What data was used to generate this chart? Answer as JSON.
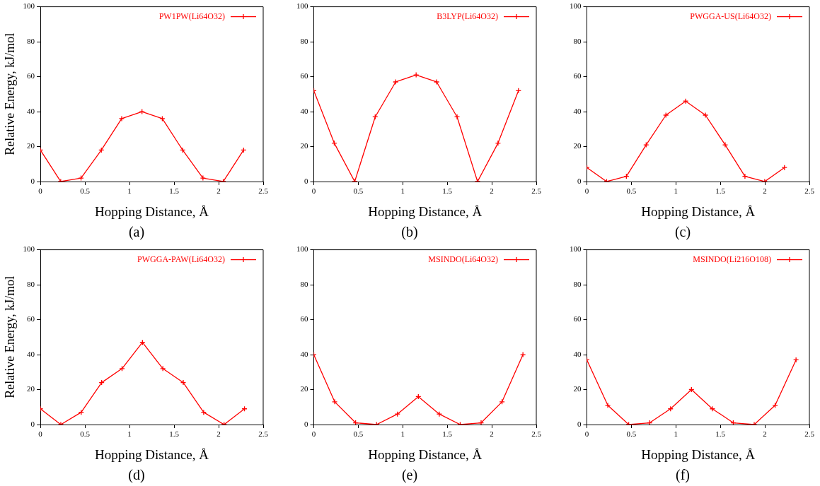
{
  "chart_data": [
    {
      "type": "line",
      "xlabel": "Hopping Distance, Å",
      "ylabel": "Relative Energy, kJ/mol",
      "annotations": [
        "(a)"
      ],
      "xlim": [
        0,
        2.5
      ],
      "xticks": [
        0,
        0.5,
        1,
        1.5,
        2,
        2.5
      ],
      "ylim": [
        0,
        100
      ],
      "yticks": [
        0,
        20,
        40,
        60,
        80,
        100
      ],
      "grid": false,
      "legend": "top right",
      "marker": "cross",
      "line_style": "solid",
      "series": [
        {
          "name": "PW1PW(Li64O32)",
          "color": "#ff0000",
          "x": [
            0,
            0.228,
            0.456,
            0.684,
            0.912,
            1.14,
            1.368,
            1.596,
            1.824,
            2.052,
            2.28
          ],
          "values": [
            18,
            0,
            2,
            18,
            36,
            40,
            36,
            18,
            2,
            0,
            18
          ]
        }
      ]
    },
    {
      "type": "line",
      "xlabel": "Hopping Distance, Å",
      "annotations": [
        "(b)"
      ],
      "xlim": [
        0,
        2.5
      ],
      "xticks": [
        0,
        0.5,
        1,
        1.5,
        2,
        2.5
      ],
      "ylim": [
        0,
        100
      ],
      "yticks": [
        0,
        20,
        40,
        60,
        80,
        100
      ],
      "grid": false,
      "legend": "top right",
      "marker": "cross",
      "line_style": "solid",
      "series": [
        {
          "name": "B3LYP(Li64O32)",
          "color": "#ff0000",
          "x": [
            0,
            0.23,
            0.46,
            0.69,
            0.92,
            1.15,
            1.38,
            1.61,
            1.84,
            2.07,
            2.3
          ],
          "values": [
            52,
            22,
            0,
            37,
            57,
            61,
            57,
            37,
            0,
            22,
            52
          ]
        }
      ]
    },
    {
      "type": "line",
      "xlabel": "Hopping Distance, Å",
      "annotations": [
        "(c)"
      ],
      "xlim": [
        0,
        2.5
      ],
      "xticks": [
        0,
        0.5,
        1,
        1.5,
        2,
        2.5
      ],
      "ylim": [
        0,
        100
      ],
      "yticks": [
        0,
        20,
        40,
        60,
        80,
        100
      ],
      "grid": false,
      "legend": "top right",
      "marker": "cross",
      "line_style": "solid",
      "series": [
        {
          "name": "PWGGA-US(Li64O32)",
          "color": "#ff0000",
          "x": [
            0,
            0.222,
            0.444,
            0.666,
            0.888,
            1.11,
            1.332,
            1.554,
            1.776,
            1.998,
            2.22
          ],
          "values": [
            8,
            0,
            3,
            21,
            38,
            46,
            38,
            21,
            3,
            0,
            8
          ]
        }
      ]
    },
    {
      "type": "line",
      "xlabel": "Hopping Distance, Å",
      "ylabel": "Relative Energy, kJ/mol",
      "annotations": [
        "(d)"
      ],
      "xlim": [
        0,
        2.5
      ],
      "xticks": [
        0,
        0.5,
        1,
        1.5,
        2,
        2.5
      ],
      "ylim": [
        0,
        100
      ],
      "yticks": [
        0,
        20,
        40,
        60,
        80,
        100
      ],
      "grid": false,
      "legend": "top right",
      "marker": "cross",
      "line_style": "solid",
      "series": [
        {
          "name": "PWGGA-PAW(Li64O32)",
          "color": "#ff0000",
          "x": [
            0,
            0.229,
            0.458,
            0.687,
            0.916,
            1.145,
            1.374,
            1.603,
            1.832,
            2.061,
            2.29
          ],
          "values": [
            9,
            0,
            7,
            24,
            32,
            47,
            32,
            24,
            7,
            0,
            9
          ]
        }
      ]
    },
    {
      "type": "line",
      "xlabel": "Hopping Distance, Å",
      "annotations": [
        "(e)"
      ],
      "xlim": [
        0,
        2.5
      ],
      "xticks": [
        0,
        0.5,
        1,
        1.5,
        2,
        2.5
      ],
      "ylim": [
        0,
        100
      ],
      "yticks": [
        0,
        20,
        40,
        60,
        80,
        100
      ],
      "grid": false,
      "legend": "top right",
      "marker": "cross",
      "line_style": "solid",
      "series": [
        {
          "name": "MSINDO(Li64O32)",
          "color": "#ff0000",
          "x": [
            0,
            0.235,
            0.47,
            0.705,
            0.94,
            1.175,
            1.41,
            1.645,
            1.88,
            2.115,
            2.35
          ],
          "values": [
            40,
            13,
            1,
            0,
            6,
            16,
            6,
            0,
            1,
            13,
            40
          ]
        }
      ]
    },
    {
      "type": "line",
      "xlabel": "Hopping Distance, Å",
      "annotations": [
        "(f)"
      ],
      "xlim": [
        0,
        2.5
      ],
      "xticks": [
        0,
        0.5,
        1,
        1.5,
        2,
        2.5
      ],
      "ylim": [
        0,
        100
      ],
      "yticks": [
        0,
        20,
        40,
        60,
        80,
        100
      ],
      "grid": false,
      "legend": "top right",
      "marker": "cross",
      "line_style": "solid",
      "series": [
        {
          "name": "MSINDO(Li216O108)",
          "color": "#ff0000",
          "x": [
            0,
            0.235,
            0.47,
            0.705,
            0.94,
            1.175,
            1.41,
            1.645,
            1.88,
            2.115,
            2.35
          ],
          "values": [
            37,
            11,
            0,
            1,
            9,
            20,
            9,
            1,
            0,
            11,
            37
          ]
        }
      ]
    }
  ]
}
